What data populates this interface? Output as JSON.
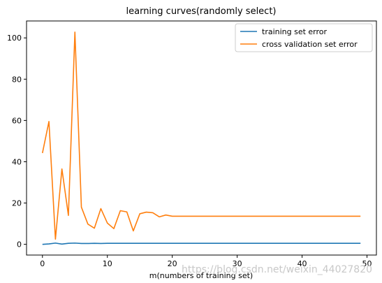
{
  "chart_data": {
    "type": "line",
    "title": "learning curves(randomly select)",
    "xlabel": "m(numbers of training set)",
    "ylabel": "",
    "xlim": [
      -2.45,
      51.45
    ],
    "ylim": [
      -5.2,
      108.2
    ],
    "xticks": [
      0,
      10,
      20,
      30,
      40,
      50
    ],
    "yticks": [
      0,
      20,
      40,
      60,
      80,
      100
    ],
    "grid": false,
    "legend_position": "top-right",
    "series": [
      {
        "name": "training set error",
        "color": "#1f77b4",
        "x": [
          0,
          1,
          2,
          3,
          4,
          5,
          6,
          7,
          8,
          9,
          10,
          11,
          12,
          13,
          14,
          15,
          16,
          17,
          18,
          19,
          20,
          21,
          22,
          23,
          24,
          25,
          26,
          27,
          28,
          29,
          30,
          31,
          32,
          33,
          34,
          35,
          36,
          37,
          38,
          39,
          40,
          41,
          42,
          43,
          44,
          45,
          46,
          47,
          48,
          49
        ],
        "y": [
          0.0,
          0.2,
          0.6,
          0.1,
          0.5,
          0.6,
          0.4,
          0.4,
          0.5,
          0.4,
          0.5,
          0.5,
          0.5,
          0.5,
          0.5,
          0.5,
          0.5,
          0.5,
          0.5,
          0.5,
          0.5,
          0.5,
          0.5,
          0.5,
          0.5,
          0.5,
          0.5,
          0.5,
          0.5,
          0.5,
          0.5,
          0.5,
          0.5,
          0.5,
          0.5,
          0.5,
          0.5,
          0.5,
          0.5,
          0.5,
          0.5,
          0.5,
          0.5,
          0.5,
          0.5,
          0.5,
          0.5,
          0.5,
          0.5,
          0.5
        ]
      },
      {
        "name": "cross validation set error",
        "color": "#ff7f0e",
        "x": [
          0,
          1,
          2,
          3,
          4,
          5,
          6,
          7,
          8,
          9,
          10,
          11,
          12,
          13,
          14,
          15,
          16,
          17,
          18,
          19,
          20,
          21,
          22,
          23,
          24,
          25,
          26,
          27,
          28,
          29,
          30,
          31,
          32,
          33,
          34,
          35,
          36,
          37,
          38,
          39,
          40,
          41,
          42,
          43,
          44,
          45,
          46,
          47,
          48,
          49
        ],
        "y": [
          44.2,
          59.5,
          2.5,
          36.5,
          14.0,
          102.8,
          18.0,
          9.8,
          7.8,
          17.3,
          10.3,
          7.6,
          16.3,
          15.7,
          6.5,
          14.8,
          15.6,
          15.3,
          13.3,
          14.2,
          13.6,
          13.6,
          13.6,
          13.6,
          13.6,
          13.6,
          13.6,
          13.6,
          13.6,
          13.6,
          13.6,
          13.6,
          13.6,
          13.6,
          13.6,
          13.6,
          13.6,
          13.6,
          13.6,
          13.6,
          13.6,
          13.6,
          13.6,
          13.6,
          13.6,
          13.6,
          13.6,
          13.6,
          13.6,
          13.6
        ]
      }
    ]
  },
  "watermark": "https://blog.csdn.net/weixin_44027820"
}
